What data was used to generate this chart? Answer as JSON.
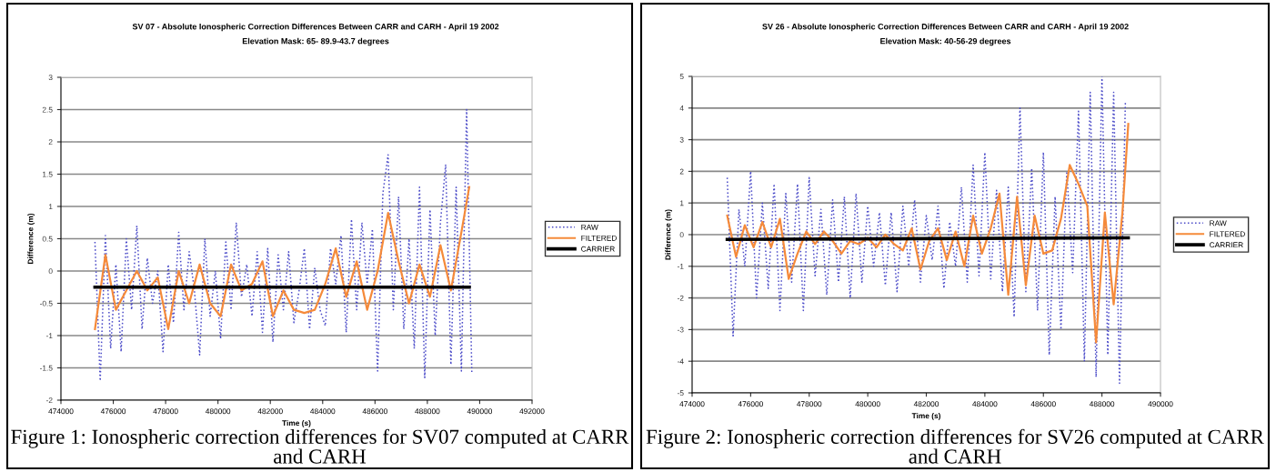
{
  "chart_data": [
    {
      "type": "line",
      "title": "SV 07 - Absolute Ionospheric Correction Differences Between CARR and CARH - April 19 2002",
      "subtitle": "Elevation Mask: 65- 89.9-43.7 degrees",
      "xlabel": "Time (s)",
      "ylabel": "Difference (m)",
      "annotations": [
        "Figure 1: Ionospheric correction differences for SV07 computed at CARR and CARH"
      ],
      "xlim": [
        474000,
        492000
      ],
      "xticks": [
        474000,
        476000,
        478000,
        480000,
        482000,
        484000,
        486000,
        488000,
        490000,
        492000
      ],
      "ylim": [
        -2,
        3
      ],
      "yticks": [
        -2,
        -1.5,
        -1,
        -0.5,
        0,
        0.5,
        1,
        1.5,
        2,
        2.5,
        3
      ],
      "grid": "y",
      "legend": "right",
      "series": [
        {
          "name": "RAW",
          "color": "#4a4ac8",
          "line_style": "dotted",
          "x": [
            475300,
            475500,
            475700,
            475900,
            476100,
            476300,
            476500,
            476700,
            476900,
            477100,
            477300,
            477500,
            477700,
            477900,
            478100,
            478300,
            478500,
            478700,
            478900,
            479100,
            479300,
            479500,
            479700,
            479900,
            480100,
            480300,
            480500,
            480700,
            480900,
            481100,
            481300,
            481500,
            481700,
            481900,
            482100,
            482300,
            482500,
            482700,
            482900,
            483100,
            483300,
            483500,
            483700,
            483900,
            484100,
            484300,
            484500,
            484700,
            484900,
            485100,
            485300,
            485500,
            485700,
            485900,
            486100,
            486300,
            486500,
            486700,
            486900,
            487100,
            487300,
            487500,
            487700,
            487900,
            488100,
            488300,
            488500,
            488700,
            488900,
            489100,
            489300,
            489500,
            489700
          ],
          "values": [
            0.45,
            -1.7,
            0.55,
            -1.2,
            0.1,
            -1.25,
            0.5,
            -0.6,
            0.7,
            -0.9,
            0.2,
            -0.5,
            0.0,
            -1.25,
            0.1,
            -0.8,
            0.6,
            -0.6,
            0.3,
            -0.3,
            -1.3,
            0.5,
            -0.7,
            0.0,
            -1.05,
            0.45,
            -0.6,
            0.75,
            -0.4,
            0.1,
            -0.7,
            0.3,
            -0.95,
            0.35,
            -1.1,
            0.25,
            -0.6,
            0.3,
            -0.8,
            -0.3,
            0.35,
            -0.9,
            0.05,
            -0.6,
            -0.85,
            0.35,
            -0.2,
            0.55,
            -0.95,
            0.8,
            -0.6,
            0.75,
            -0.2,
            0.65,
            -1.55,
            1.2,
            1.8,
            -0.6,
            1.15,
            -0.9,
            0.5,
            -1.2,
            1.3,
            -1.65,
            0.95,
            -1.0,
            0.75,
            1.65,
            -1.45,
            1.3,
            -1.55,
            2.5,
            -1.6
          ]
        },
        {
          "name": "FILTERED",
          "color": "#f58a3a",
          "line_style": "solid",
          "x": [
            475300,
            475700,
            476100,
            476500,
            476900,
            477300,
            477700,
            478100,
            478500,
            478900,
            479300,
            479700,
            480100,
            480500,
            480900,
            481300,
            481700,
            482100,
            482500,
            482900,
            483300,
            483700,
            484100,
            484500,
            484900,
            485300,
            485700,
            486100,
            486500,
            486900,
            487300,
            487700,
            488100,
            488500,
            488900,
            489300,
            489600
          ],
          "values": [
            -0.9,
            0.25,
            -0.6,
            -0.3,
            0.0,
            -0.3,
            -0.1,
            -0.9,
            0.0,
            -0.5,
            0.1,
            -0.5,
            -0.7,
            0.1,
            -0.3,
            -0.2,
            0.15,
            -0.7,
            -0.3,
            -0.6,
            -0.65,
            -0.6,
            -0.2,
            0.35,
            -0.4,
            0.15,
            -0.6,
            0.0,
            0.9,
            0.15,
            -0.5,
            0.1,
            -0.4,
            0.4,
            -0.3,
            0.6,
            1.3
          ]
        },
        {
          "name": "CARRIER",
          "color": "#000000",
          "line_style": "solid",
          "x": [
            475300,
            489600
          ],
          "values": [
            -0.25,
            -0.25
          ]
        }
      ]
    },
    {
      "type": "line",
      "title": "SV 26 - Absolute Ionospheric Correction Differences Between CARR and CARH - April 19 2002",
      "subtitle": "Elevation Mask: 40-56-29 degrees",
      "xlabel": "Time (s)",
      "ylabel": "Difference (m)",
      "annotations": [
        "Figure 2: Ionospheric correction differences for SV26 computed at CARR and CARH"
      ],
      "xlim": [
        474000,
        490000
      ],
      "xticks": [
        474000,
        476000,
        478000,
        480000,
        482000,
        484000,
        486000,
        488000,
        490000
      ],
      "ylim": [
        -5,
        5
      ],
      "yticks": [
        -5,
        -4,
        -3,
        -2,
        -1,
        0,
        1,
        2,
        3,
        4,
        5
      ],
      "grid": "y",
      "legend": "right",
      "series": [
        {
          "name": "RAW",
          "color": "#4a4ac8",
          "line_style": "dotted",
          "x": [
            475200,
            475400,
            475600,
            475800,
            476000,
            476200,
            476400,
            476600,
            476800,
            477000,
            477200,
            477400,
            477600,
            477800,
            478000,
            478200,
            478400,
            478600,
            478800,
            479000,
            479200,
            479400,
            479600,
            479800,
            480000,
            480200,
            480400,
            480600,
            480800,
            481000,
            481200,
            481400,
            481600,
            481800,
            482000,
            482200,
            482400,
            482600,
            482800,
            483000,
            483200,
            483400,
            483600,
            483800,
            484000,
            484200,
            484400,
            484600,
            484800,
            485000,
            485200,
            485400,
            485600,
            485800,
            486000,
            486200,
            486400,
            486600,
            486800,
            487000,
            487200,
            487400,
            487600,
            487800,
            488000,
            488200,
            488400,
            488600,
            488800
          ],
          "values": [
            1.8,
            -3.2,
            0.8,
            -1.0,
            2.0,
            -2.0,
            1.0,
            -1.7,
            1.6,
            -2.4,
            1.3,
            -1.5,
            1.6,
            -2.4,
            1.8,
            -1.3,
            0.8,
            -1.9,
            1.1,
            -1.5,
            1.2,
            -2.0,
            1.3,
            -1.5,
            0.9,
            -1.0,
            0.7,
            -1.6,
            0.7,
            -1.8,
            0.9,
            -1.0,
            1.1,
            -1.5,
            0.6,
            -0.8,
            0.9,
            -1.7,
            0.4,
            -1.0,
            1.5,
            -1.5,
            2.2,
            -1.3,
            2.6,
            -1.4,
            1.4,
            -1.8,
            1.5,
            -2.6,
            4.0,
            -1.8,
            2.1,
            -2.4,
            2.6,
            -3.8,
            1.2,
            -3.0,
            2.0,
            -1.2,
            3.9,
            -4.0,
            4.5,
            -4.5,
            5.0,
            -3.8,
            4.5,
            -4.7,
            4.2
          ]
        },
        {
          "name": "FILTERED",
          "color": "#f58a3a",
          "line_style": "solid",
          "x": [
            475200,
            475500,
            475800,
            476100,
            476400,
            476700,
            477000,
            477300,
            477600,
            477900,
            478200,
            478500,
            478800,
            479100,
            479400,
            479700,
            480000,
            480300,
            480600,
            480900,
            481200,
            481500,
            481800,
            482100,
            482400,
            482700,
            483000,
            483300,
            483600,
            483900,
            484200,
            484500,
            484800,
            485100,
            485400,
            485700,
            486000,
            486300,
            486600,
            486900,
            487200,
            487500,
            487800,
            488100,
            488400,
            488700,
            488900
          ],
          "values": [
            0.6,
            -0.7,
            0.3,
            -0.4,
            0.4,
            -0.4,
            0.5,
            -1.4,
            -0.6,
            0.1,
            -0.3,
            0.1,
            -0.2,
            -0.6,
            -0.2,
            -0.3,
            -0.1,
            -0.4,
            0.0,
            -0.3,
            -0.5,
            0.2,
            -1.1,
            -0.2,
            0.2,
            -0.8,
            0.1,
            -1.0,
            0.6,
            -0.6,
            0.2,
            1.3,
            -1.9,
            1.2,
            -1.6,
            0.6,
            -0.6,
            -0.5,
            0.5,
            2.2,
            1.6,
            0.9,
            -3.4,
            0.7,
            -2.2,
            0.7,
            3.5
          ]
        },
        {
          "name": "CARRIER",
          "color": "#000000",
          "line_style": "solid",
          "x": [
            475200,
            488900
          ],
          "values": [
            -0.15,
            -0.1
          ]
        }
      ]
    }
  ]
}
